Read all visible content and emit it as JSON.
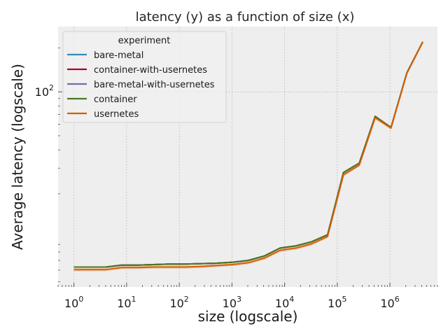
{
  "chart_data": {
    "type": "line",
    "title": "latency (y) as a function of size (x)",
    "xlabel": "size (logscale)",
    "ylabel": "Average latency (logscale)",
    "xscale": "log",
    "yscale": "log",
    "xlim": [
      0.5,
      8000000
    ],
    "ylim": [
      4.6,
      280
    ],
    "grid": true,
    "legend": {
      "title": "experiment",
      "placement": "upper-left"
    },
    "x_ticks": [
      {
        "value": 1,
        "base": "10",
        "exp": "0"
      },
      {
        "value": 10,
        "base": "10",
        "exp": "1"
      },
      {
        "value": 100,
        "base": "10",
        "exp": "2"
      },
      {
        "value": 1000,
        "base": "10",
        "exp": "3"
      },
      {
        "value": 10000,
        "base": "10",
        "exp": "4"
      },
      {
        "value": 100000,
        "base": "10",
        "exp": "5"
      },
      {
        "value": 1000000,
        "base": "10",
        "exp": "6"
      }
    ],
    "y_ticks": [
      {
        "value": 100,
        "base": "10",
        "exp": "2"
      }
    ],
    "x": [
      1,
      2,
      4,
      8,
      16,
      32,
      64,
      128,
      256,
      512,
      1024,
      2048,
      4096,
      8192,
      16384,
      32768,
      65536,
      131072,
      262144,
      524288,
      1048576,
      2097152,
      4194304
    ],
    "series": [
      {
        "name": "bare-metal",
        "color": "#348abd",
        "values": [
          6.3,
          6.3,
          6.3,
          6.5,
          6.5,
          6.55,
          6.6,
          6.6,
          6.65,
          6.7,
          6.8,
          7.0,
          7.5,
          8.5,
          8.8,
          9.4,
          10.5,
          28.0,
          32.5,
          68.0,
          57.0,
          135.0,
          220.0
        ]
      },
      {
        "name": "container-with-usernetes",
        "color": "#a60628",
        "values": [
          6.3,
          6.3,
          6.3,
          6.5,
          6.5,
          6.55,
          6.6,
          6.6,
          6.65,
          6.7,
          6.8,
          7.0,
          7.5,
          8.5,
          8.8,
          9.4,
          10.5,
          28.0,
          32.5,
          68.0,
          57.0,
          135.0,
          220.0
        ]
      },
      {
        "name": "bare-metal-with-usernetes",
        "color": "#7a68a6",
        "values": [
          6.3,
          6.3,
          6.3,
          6.5,
          6.5,
          6.55,
          6.6,
          6.6,
          6.65,
          6.7,
          6.8,
          7.0,
          7.5,
          8.5,
          8.8,
          9.4,
          10.5,
          28.0,
          32.5,
          68.0,
          57.0,
          135.0,
          220.0
        ]
      },
      {
        "name": "container",
        "color": "#467821",
        "values": [
          6.3,
          6.3,
          6.3,
          6.5,
          6.5,
          6.55,
          6.6,
          6.6,
          6.65,
          6.7,
          6.8,
          7.0,
          7.5,
          8.5,
          8.8,
          9.4,
          10.5,
          28.0,
          32.5,
          68.0,
          57.0,
          135.0,
          220.0
        ]
      },
      {
        "name": "usernetes",
        "color": "#d55e00",
        "values": [
          6.05,
          6.05,
          6.05,
          6.25,
          6.25,
          6.3,
          6.3,
          6.3,
          6.35,
          6.45,
          6.55,
          6.75,
          7.25,
          8.2,
          8.5,
          9.1,
          10.2,
          27.0,
          31.5,
          66.5,
          56.5,
          134.0,
          219.0
        ]
      }
    ]
  }
}
